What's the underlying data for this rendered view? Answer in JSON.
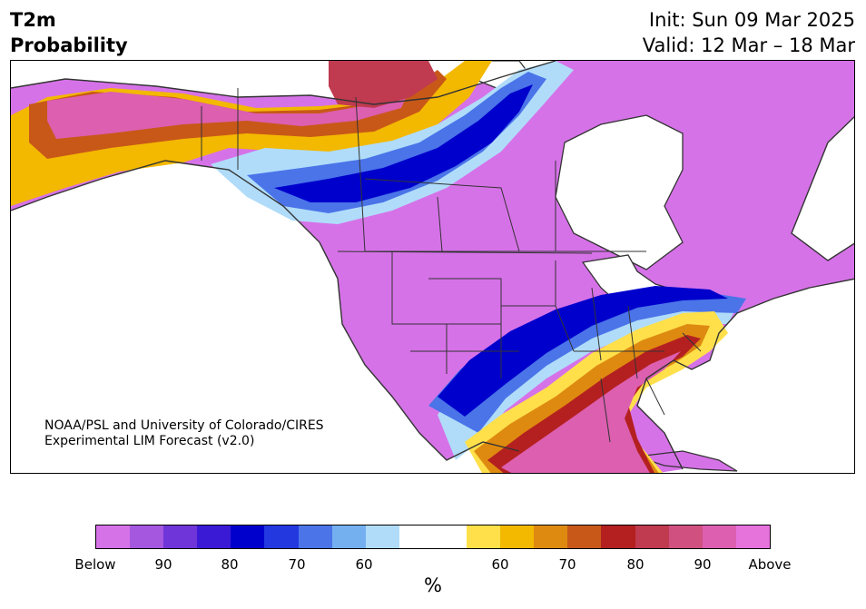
{
  "title": {
    "variable": "T2m",
    "product": "Probability",
    "init": "Init: Sun 09 Mar 2025",
    "valid": "Valid: 12 Mar – 18 Mar"
  },
  "credit": {
    "line1": "NOAA/PSL and University of Colorado/CIRES",
    "line2": "Experimental LIM Forecast (v2.0)"
  },
  "colorbar": {
    "colors": [
      "#d672e8",
      "#a557e0",
      "#6f35d8",
      "#3b1ad6",
      "#0000cc",
      "#2438e0",
      "#4a74e8",
      "#74b0f0",
      "#b0dcfa",
      "#ffffff",
      "#ffffff",
      "#ffe04a",
      "#f3b800",
      "#de8a10",
      "#c85818",
      "#b42020",
      "#c03a50",
      "#d05080",
      "#dc5fb0",
      "#e672dc"
    ],
    "tick_labels": [
      "Below",
      "90",
      "80",
      "70",
      "60",
      "60",
      "70",
      "80",
      "90",
      "Above"
    ],
    "unit": "%"
  },
  "map": {
    "land_color": "#d672e8",
    "water_color": "#ffffff",
    "border_color": "#333333"
  }
}
